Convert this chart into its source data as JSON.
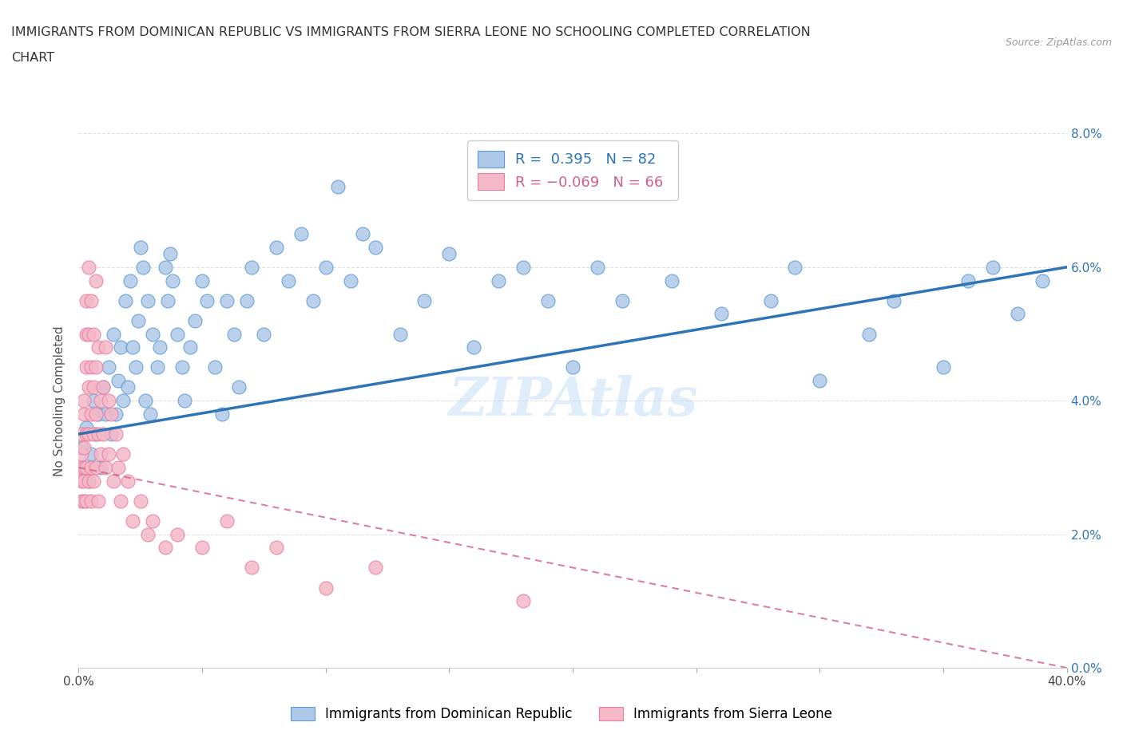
{
  "title_line1": "IMMIGRANTS FROM DOMINICAN REPUBLIC VS IMMIGRANTS FROM SIERRA LEONE NO SCHOOLING COMPLETED CORRELATION",
  "title_line2": "CHART",
  "source_text": "Source: ZipAtlas.com",
  "ylabel": "No Schooling Completed",
  "xmin": 0.0,
  "xmax": 0.4,
  "ymin": 0.0,
  "ymax": 0.08,
  "xtick_vals": [
    0.0,
    0.05,
    0.1,
    0.15,
    0.2,
    0.25,
    0.3,
    0.35,
    0.4
  ],
  "xtick_label_vals": [
    0.0,
    0.4
  ],
  "ytick_vals": [
    0.0,
    0.02,
    0.04,
    0.06,
    0.08
  ],
  "ytick_labels": [
    "0.0%",
    "2.0%",
    "4.0%",
    "6.0%",
    "8.0%"
  ],
  "blue_color": "#aec8e8",
  "blue_edge_color": "#5b9bd5",
  "pink_color": "#f4b8c8",
  "pink_edge_color": "#e87fa0",
  "blue_line_color": "#2e75b6",
  "pink_line_color": "#d45e8a",
  "R_blue": 0.395,
  "N_blue": 82,
  "R_pink": -0.069,
  "N_pink": 66,
  "blue_scatter_x": [
    0.001,
    0.002,
    0.003,
    0.004,
    0.005,
    0.006,
    0.007,
    0.008,
    0.009,
    0.01,
    0.011,
    0.012,
    0.013,
    0.014,
    0.015,
    0.016,
    0.017,
    0.018,
    0.019,
    0.02,
    0.021,
    0.022,
    0.023,
    0.024,
    0.025,
    0.026,
    0.027,
    0.028,
    0.029,
    0.03,
    0.032,
    0.033,
    0.035,
    0.036,
    0.037,
    0.038,
    0.04,
    0.042,
    0.043,
    0.045,
    0.047,
    0.05,
    0.052,
    0.055,
    0.058,
    0.06,
    0.063,
    0.065,
    0.068,
    0.07,
    0.075,
    0.08,
    0.085,
    0.09,
    0.095,
    0.1,
    0.105,
    0.11,
    0.115,
    0.12,
    0.13,
    0.14,
    0.15,
    0.16,
    0.17,
    0.18,
    0.19,
    0.2,
    0.21,
    0.22,
    0.24,
    0.26,
    0.28,
    0.29,
    0.3,
    0.32,
    0.33,
    0.35,
    0.36,
    0.37,
    0.38,
    0.39
  ],
  "blue_scatter_y": [
    0.033,
    0.03,
    0.036,
    0.028,
    0.032,
    0.04,
    0.035,
    0.038,
    0.03,
    0.042,
    0.038,
    0.045,
    0.035,
    0.05,
    0.038,
    0.043,
    0.048,
    0.04,
    0.055,
    0.042,
    0.058,
    0.048,
    0.045,
    0.052,
    0.063,
    0.06,
    0.04,
    0.055,
    0.038,
    0.05,
    0.045,
    0.048,
    0.06,
    0.055,
    0.062,
    0.058,
    0.05,
    0.045,
    0.04,
    0.048,
    0.052,
    0.058,
    0.055,
    0.045,
    0.038,
    0.055,
    0.05,
    0.042,
    0.055,
    0.06,
    0.05,
    0.063,
    0.058,
    0.065,
    0.055,
    0.06,
    0.072,
    0.058,
    0.065,
    0.063,
    0.05,
    0.055,
    0.062,
    0.048,
    0.058,
    0.06,
    0.055,
    0.045,
    0.06,
    0.055,
    0.058,
    0.053,
    0.055,
    0.06,
    0.043,
    0.05,
    0.055,
    0.045,
    0.058,
    0.06,
    0.053,
    0.058
  ],
  "pink_scatter_x": [
    0.001,
    0.001,
    0.001,
    0.001,
    0.001,
    0.002,
    0.002,
    0.002,
    0.002,
    0.002,
    0.002,
    0.003,
    0.003,
    0.003,
    0.003,
    0.003,
    0.003,
    0.004,
    0.004,
    0.004,
    0.004,
    0.004,
    0.005,
    0.005,
    0.005,
    0.005,
    0.005,
    0.006,
    0.006,
    0.006,
    0.006,
    0.007,
    0.007,
    0.007,
    0.007,
    0.008,
    0.008,
    0.008,
    0.009,
    0.009,
    0.01,
    0.01,
    0.011,
    0.011,
    0.012,
    0.012,
    0.013,
    0.014,
    0.015,
    0.016,
    0.017,
    0.018,
    0.02,
    0.022,
    0.025,
    0.028,
    0.03,
    0.035,
    0.04,
    0.05,
    0.06,
    0.07,
    0.08,
    0.1,
    0.12,
    0.18
  ],
  "pink_scatter_y": [
    0.03,
    0.028,
    0.032,
    0.025,
    0.035,
    0.03,
    0.033,
    0.028,
    0.038,
    0.025,
    0.04,
    0.03,
    0.045,
    0.035,
    0.025,
    0.05,
    0.055,
    0.06,
    0.042,
    0.035,
    0.028,
    0.05,
    0.045,
    0.038,
    0.03,
    0.055,
    0.025,
    0.042,
    0.035,
    0.028,
    0.05,
    0.045,
    0.038,
    0.03,
    0.058,
    0.048,
    0.035,
    0.025,
    0.04,
    0.032,
    0.042,
    0.035,
    0.048,
    0.03,
    0.04,
    0.032,
    0.038,
    0.028,
    0.035,
    0.03,
    0.025,
    0.032,
    0.028,
    0.022,
    0.025,
    0.02,
    0.022,
    0.018,
    0.02,
    0.018,
    0.022,
    0.015,
    0.018,
    0.012,
    0.015,
    0.01
  ],
  "watermark_text": "ZIPAtlas",
  "background_color": "#ffffff",
  "grid_color": "#e0e0e0",
  "blue_trend_x0": 0.0,
  "blue_trend_y0": 0.035,
  "blue_trend_x1": 0.4,
  "blue_trend_y1": 0.06,
  "pink_trend_x0": 0.0,
  "pink_trend_y0": 0.03,
  "pink_trend_x1": 0.4,
  "pink_trend_y1": 0.0
}
